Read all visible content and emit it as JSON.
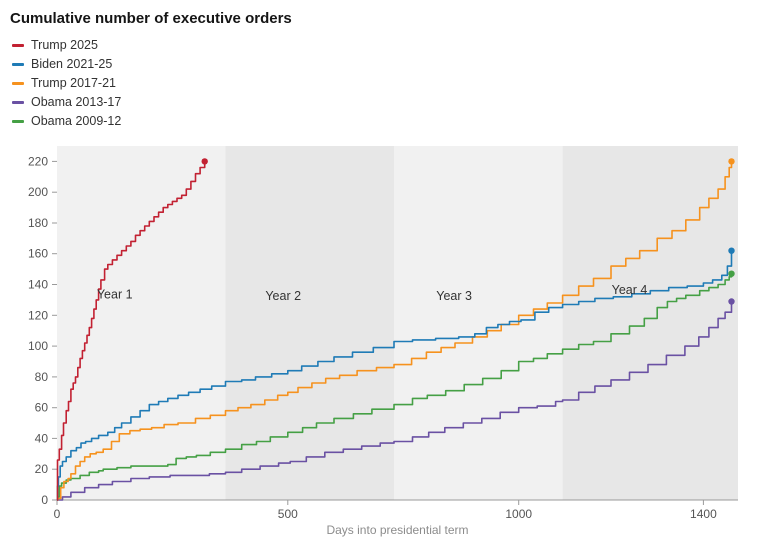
{
  "chart_data": {
    "type": "line",
    "title": "Cumulative number of executive orders",
    "xlabel": "Days into presidential term",
    "ylabel": "",
    "x_domain": [
      0,
      1475
    ],
    "y_domain": [
      0,
      230
    ],
    "x_ticks": [
      0,
      500,
      1000,
      1400
    ],
    "y_ticks": [
      0,
      20,
      40,
      60,
      80,
      100,
      120,
      140,
      160,
      180,
      200,
      220
    ],
    "grid": false,
    "legend_position": "top-left",
    "bands": [
      {
        "label": "Year 1",
        "from": 0,
        "to": 365,
        "color": "#f1f1f1"
      },
      {
        "label": "Year 2",
        "from": 365,
        "to": 730,
        "color": "#e7e7e7"
      },
      {
        "label": "Year 3",
        "from": 730,
        "to": 1095,
        "color": "#f1f1f1"
      },
      {
        "label": "Year 4",
        "from": 1095,
        "to": 1475,
        "color": "#e7e7e7"
      }
    ],
    "annotations": [
      {
        "label": "Year 1",
        "x": 125,
        "y": 131
      },
      {
        "label": "Year 2",
        "x": 490,
        "y": 130
      },
      {
        "label": "Year 3",
        "x": 860,
        "y": 130
      },
      {
        "label": "Year 4",
        "x": 1240,
        "y": 134
      }
    ],
    "series": [
      {
        "name": "Trump 2025",
        "color": "#c22132",
        "end_dot": true,
        "points": [
          [
            0,
            0
          ],
          [
            1,
            26
          ],
          [
            5,
            33
          ],
          [
            10,
            42
          ],
          [
            14,
            50
          ],
          [
            20,
            58
          ],
          [
            25,
            64
          ],
          [
            30,
            72
          ],
          [
            35,
            76
          ],
          [
            40,
            80
          ],
          [
            45,
            86
          ],
          [
            50,
            92
          ],
          [
            55,
            97
          ],
          [
            60,
            102
          ],
          [
            65,
            107
          ],
          [
            70,
            112
          ],
          [
            75,
            118
          ],
          [
            80,
            124
          ],
          [
            85,
            130
          ],
          [
            90,
            137
          ],
          [
            95,
            143
          ],
          [
            103,
            150
          ],
          [
            110,
            153
          ],
          [
            120,
            156
          ],
          [
            130,
            159
          ],
          [
            140,
            162
          ],
          [
            150,
            165
          ],
          [
            160,
            168
          ],
          [
            170,
            172
          ],
          [
            180,
            175
          ],
          [
            190,
            178
          ],
          [
            200,
            181
          ],
          [
            210,
            184
          ],
          [
            220,
            187
          ],
          [
            230,
            190
          ],
          [
            240,
            192
          ],
          [
            250,
            194
          ],
          [
            260,
            196
          ],
          [
            270,
            198
          ],
          [
            280,
            202
          ],
          [
            290,
            207
          ],
          [
            300,
            212
          ],
          [
            310,
            216
          ],
          [
            320,
            220
          ]
        ]
      },
      {
        "name": "Biden 2021-25",
        "color": "#1f7bb6",
        "end_dot": true,
        "points": [
          [
            0,
            0
          ],
          [
            1,
            9
          ],
          [
            3,
            15
          ],
          [
            7,
            22
          ],
          [
            12,
            25
          ],
          [
            20,
            28
          ],
          [
            30,
            32
          ],
          [
            42,
            34
          ],
          [
            52,
            37
          ],
          [
            62,
            38
          ],
          [
            75,
            40
          ],
          [
            90,
            42
          ],
          [
            110,
            44
          ],
          [
            125,
            47
          ],
          [
            140,
            50
          ],
          [
            160,
            54
          ],
          [
            180,
            58
          ],
          [
            200,
            62
          ],
          [
            220,
            64
          ],
          [
            240,
            66
          ],
          [
            262,
            68
          ],
          [
            285,
            70
          ],
          [
            310,
            72
          ],
          [
            335,
            74
          ],
          [
            365,
            77
          ],
          [
            400,
            78
          ],
          [
            430,
            80
          ],
          [
            465,
            82
          ],
          [
            500,
            84
          ],
          [
            530,
            87
          ],
          [
            565,
            90
          ],
          [
            600,
            93
          ],
          [
            640,
            96
          ],
          [
            685,
            99
          ],
          [
            730,
            103
          ],
          [
            770,
            104
          ],
          [
            820,
            105
          ],
          [
            870,
            106
          ],
          [
            905,
            108
          ],
          [
            930,
            112
          ],
          [
            955,
            114
          ],
          [
            980,
            116
          ],
          [
            1005,
            117
          ],
          [
            1035,
            122
          ],
          [
            1065,
            125
          ],
          [
            1095,
            127
          ],
          [
            1130,
            129
          ],
          [
            1165,
            131
          ],
          [
            1205,
            132
          ],
          [
            1245,
            134
          ],
          [
            1285,
            136
          ],
          [
            1325,
            138
          ],
          [
            1365,
            139
          ],
          [
            1400,
            141
          ],
          [
            1420,
            143
          ],
          [
            1440,
            146
          ],
          [
            1452,
            152
          ],
          [
            1461,
            162
          ]
        ]
      },
      {
        "name": "Trump 2017-21",
        "color": "#f6921e",
        "end_dot": true,
        "points": [
          [
            0,
            0
          ],
          [
            2,
            1
          ],
          [
            8,
            8
          ],
          [
            15,
            12
          ],
          [
            24,
            14
          ],
          [
            30,
            17
          ],
          [
            40,
            22
          ],
          [
            50,
            25
          ],
          [
            60,
            28
          ],
          [
            72,
            30
          ],
          [
            85,
            31
          ],
          [
            100,
            33
          ],
          [
            118,
            38
          ],
          [
            135,
            43
          ],
          [
            158,
            45
          ],
          [
            180,
            46
          ],
          [
            205,
            47
          ],
          [
            232,
            49
          ],
          [
            262,
            50
          ],
          [
            300,
            53
          ],
          [
            332,
            55
          ],
          [
            365,
            58
          ],
          [
            392,
            60
          ],
          [
            420,
            62
          ],
          [
            450,
            65
          ],
          [
            478,
            68
          ],
          [
            500,
            70
          ],
          [
            522,
            73
          ],
          [
            552,
            76
          ],
          [
            582,
            79
          ],
          [
            612,
            81
          ],
          [
            650,
            84
          ],
          [
            692,
            86
          ],
          [
            730,
            88
          ],
          [
            768,
            92
          ],
          [
            800,
            96
          ],
          [
            832,
            99
          ],
          [
            862,
            102
          ],
          [
            900,
            106
          ],
          [
            932,
            110
          ],
          [
            962,
            114
          ],
          [
            1000,
            120
          ],
          [
            1032,
            124
          ],
          [
            1062,
            128
          ],
          [
            1095,
            133
          ],
          [
            1130,
            139
          ],
          [
            1162,
            144
          ],
          [
            1200,
            152
          ],
          [
            1232,
            157
          ],
          [
            1262,
            162
          ],
          [
            1300,
            170
          ],
          [
            1332,
            175
          ],
          [
            1362,
            182
          ],
          [
            1392,
            190
          ],
          [
            1412,
            196
          ],
          [
            1432,
            202
          ],
          [
            1447,
            210
          ],
          [
            1456,
            216
          ],
          [
            1461,
            220
          ]
        ]
      },
      {
        "name": "Obama 2013-17",
        "color": "#6a51a3",
        "end_dot": true,
        "points": [
          [
            0,
            0
          ],
          [
            12,
            2
          ],
          [
            30,
            5
          ],
          [
            60,
            8
          ],
          [
            90,
            10
          ],
          [
            120,
            12
          ],
          [
            160,
            14
          ],
          [
            200,
            15
          ],
          [
            245,
            16
          ],
          [
            290,
            16
          ],
          [
            330,
            17
          ],
          [
            365,
            18
          ],
          [
            400,
            20
          ],
          [
            440,
            22
          ],
          [
            480,
            24
          ],
          [
            505,
            25
          ],
          [
            540,
            28
          ],
          [
            580,
            31
          ],
          [
            620,
            33
          ],
          [
            660,
            35
          ],
          [
            700,
            37
          ],
          [
            730,
            38
          ],
          [
            770,
            41
          ],
          [
            805,
            44
          ],
          [
            840,
            47
          ],
          [
            880,
            50
          ],
          [
            920,
            53
          ],
          [
            960,
            57
          ],
          [
            1000,
            60
          ],
          [
            1040,
            61
          ],
          [
            1080,
            64
          ],
          [
            1095,
            65
          ],
          [
            1130,
            70
          ],
          [
            1165,
            74
          ],
          [
            1200,
            78
          ],
          [
            1240,
            83
          ],
          [
            1280,
            88
          ],
          [
            1320,
            94
          ],
          [
            1360,
            100
          ],
          [
            1390,
            106
          ],
          [
            1412,
            112
          ],
          [
            1432,
            118
          ],
          [
            1447,
            122
          ],
          [
            1461,
            129
          ]
        ]
      },
      {
        "name": "Obama 2009-12",
        "color": "#45a045",
        "end_dot": true,
        "points": [
          [
            0,
            0
          ],
          [
            2,
            2
          ],
          [
            5,
            9
          ],
          [
            10,
            11
          ],
          [
            20,
            13
          ],
          [
            30,
            14
          ],
          [
            50,
            16
          ],
          [
            70,
            18
          ],
          [
            90,
            19
          ],
          [
            100,
            20
          ],
          [
            130,
            21
          ],
          [
            160,
            22
          ],
          [
            205,
            22
          ],
          [
            240,
            23
          ],
          [
            258,
            27
          ],
          [
            280,
            28
          ],
          [
            302,
            29
          ],
          [
            332,
            31
          ],
          [
            365,
            33
          ],
          [
            400,
            36
          ],
          [
            432,
            38
          ],
          [
            462,
            41
          ],
          [
            500,
            44
          ],
          [
            532,
            47
          ],
          [
            562,
            50
          ],
          [
            600,
            53
          ],
          [
            642,
            56
          ],
          [
            682,
            59
          ],
          [
            730,
            62
          ],
          [
            770,
            66
          ],
          [
            802,
            68
          ],
          [
            842,
            71
          ],
          [
            882,
            75
          ],
          [
            922,
            79
          ],
          [
            962,
            84
          ],
          [
            1000,
            90
          ],
          [
            1032,
            92
          ],
          [
            1062,
            95
          ],
          [
            1095,
            98
          ],
          [
            1130,
            101
          ],
          [
            1162,
            103
          ],
          [
            1200,
            108
          ],
          [
            1240,
            113
          ],
          [
            1272,
            118
          ],
          [
            1300,
            125
          ],
          [
            1322,
            129
          ],
          [
            1342,
            131
          ],
          [
            1362,
            133
          ],
          [
            1392,
            136
          ],
          [
            1412,
            138
          ],
          [
            1432,
            140
          ],
          [
            1447,
            143
          ],
          [
            1456,
            145
          ],
          [
            1461,
            147
          ]
        ]
      }
    ],
    "style": {
      "band_label_color": "#333333",
      "tick_label_color": "#555555",
      "axis_line_color": "#9a9a9a",
      "axis_title_color": "#8c8c8c",
      "line_width": 1.6
    }
  }
}
